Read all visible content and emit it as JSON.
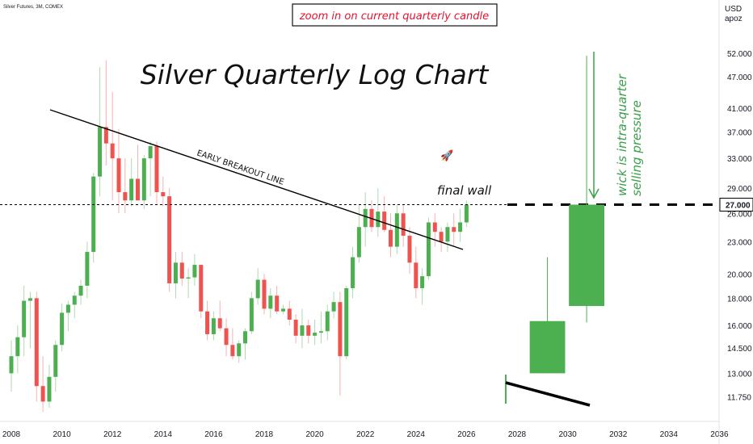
{
  "header": {
    "symbol_label": "Silver Futures, 3M, COMEX",
    "currency": "USD",
    "unit": "apoz"
  },
  "annotations": {
    "zoom_note": "zoom in on current quarterly candle",
    "breakout_line_label": "EARLY BREAKOUT LINE",
    "final_wall": "final wall",
    "wick_line1": "wick is intra-quarter",
    "wick_line2": "selling pressure",
    "rocket": "🚀"
  },
  "colors": {
    "up": "#4caf50",
    "down": "#ef5350",
    "text_red": "#e8112d",
    "text_green": "#3aa04a",
    "line": "#000000"
  },
  "chart_data": {
    "type": "candlestick",
    "title": "Silver Quarterly Log Chart",
    "y_scale": "log",
    "ylim": [
      11.2,
      56
    ],
    "xlim": [
      2007.8,
      2036.5
    ],
    "x_ticks": [
      "2008",
      "2010",
      "2012",
      "2014",
      "2016",
      "2018",
      "2020",
      "2022",
      "2024",
      "2026",
      "2028",
      "2030",
      "2032",
      "2034",
      "2036"
    ],
    "y_ticks": [
      "52.000",
      "47.000",
      "41.000",
      "37.000",
      "33.000",
      "29.000",
      "26.000",
      "23.000",
      "20.000",
      "18.000",
      "16.000",
      "14.500",
      "13.000",
      "11.750"
    ],
    "price_label": "27.000",
    "level_line": 27.0,
    "candles": [
      {
        "x": 2008.0,
        "o": 13.0,
        "h": 15.0,
        "l": 12.0,
        "c": 14.0
      },
      {
        "x": 2008.25,
        "o": 14.0,
        "h": 16.0,
        "l": 13.0,
        "c": 15.2
      },
      {
        "x": 2008.5,
        "o": 15.2,
        "h": 19.0,
        "l": 14.0,
        "c": 17.8
      },
      {
        "x": 2008.75,
        "o": 17.8,
        "h": 18.5,
        "l": 14.5,
        "c": 18.0
      },
      {
        "x": 2009.0,
        "o": 18.0,
        "h": 18.5,
        "l": 11.5,
        "c": 12.3
      },
      {
        "x": 2009.25,
        "o": 12.3,
        "h": 14.0,
        "l": 11.0,
        "c": 11.5
      },
      {
        "x": 2009.5,
        "o": 11.5,
        "h": 13.5,
        "l": 11.2,
        "c": 12.8
      },
      {
        "x": 2009.75,
        "o": 12.8,
        "h": 15.0,
        "l": 12.0,
        "c": 14.7
      },
      {
        "x": 2010.0,
        "o": 14.7,
        "h": 17.6,
        "l": 14.3,
        "c": 16.9
      },
      {
        "x": 2010.25,
        "o": 16.9,
        "h": 17.8,
        "l": 15.6,
        "c": 17.5
      },
      {
        "x": 2010.5,
        "o": 17.5,
        "h": 18.5,
        "l": 16.5,
        "c": 18.2
      },
      {
        "x": 2010.75,
        "o": 18.2,
        "h": 19.5,
        "l": 17.5,
        "c": 19.0
      },
      {
        "x": 2011.0,
        "o": 19.0,
        "h": 23.0,
        "l": 18.0,
        "c": 22.0
      },
      {
        "x": 2011.25,
        "o": 22.0,
        "h": 31.0,
        "l": 21.0,
        "c": 30.5
      },
      {
        "x": 2011.5,
        "o": 30.5,
        "h": 49.0,
        "l": 28.0,
        "c": 37.8
      },
      {
        "x": 2011.75,
        "o": 37.8,
        "h": 50.5,
        "l": 32.0,
        "c": 35.2
      },
      {
        "x": 2012.0,
        "o": 35.2,
        "h": 44.0,
        "l": 27.5,
        "c": 33.0
      },
      {
        "x": 2012.25,
        "o": 33.0,
        "h": 37.5,
        "l": 26.0,
        "c": 28.5
      },
      {
        "x": 2012.5,
        "o": 28.5,
        "h": 33.0,
        "l": 26.0,
        "c": 27.5
      },
      {
        "x": 2012.75,
        "o": 27.5,
        "h": 33.0,
        "l": 26.8,
        "c": 30.2
      },
      {
        "x": 2013.0,
        "o": 30.2,
        "h": 35.0,
        "l": 27.5,
        "c": 27.5
      },
      {
        "x": 2013.25,
        "o": 27.5,
        "h": 33.5,
        "l": 26.5,
        "c": 33.0
      },
      {
        "x": 2013.5,
        "o": 33.0,
        "h": 35.5,
        "l": 28.0,
        "c": 34.8
      },
      {
        "x": 2013.75,
        "o": 34.8,
        "h": 35.5,
        "l": 27.0,
        "c": 28.5
      },
      {
        "x": 2014.0,
        "o": 28.5,
        "h": 30.5,
        "l": 26.8,
        "c": 28.0
      },
      {
        "x": 2014.25,
        "o": 28.0,
        "h": 29.0,
        "l": 18.5,
        "c": 19.2
      },
      {
        "x": 2014.5,
        "o": 19.2,
        "h": 22.0,
        "l": 18.0,
        "c": 21.0
      },
      {
        "x": 2014.75,
        "o": 21.0,
        "h": 22.0,
        "l": 19.0,
        "c": 19.6
      },
      {
        "x": 2015.0,
        "o": 19.6,
        "h": 20.5,
        "l": 18.0,
        "c": 19.7
      },
      {
        "x": 2015.25,
        "o": 19.7,
        "h": 21.8,
        "l": 19.0,
        "c": 20.8
      },
      {
        "x": 2015.5,
        "o": 20.8,
        "h": 20.8,
        "l": 16.5,
        "c": 17.0
      },
      {
        "x": 2015.75,
        "o": 17.0,
        "h": 17.8,
        "l": 15.0,
        "c": 15.4
      },
      {
        "x": 2016.0,
        "o": 15.4,
        "h": 17.0,
        "l": 15.0,
        "c": 16.5
      },
      {
        "x": 2016.25,
        "o": 16.5,
        "h": 17.8,
        "l": 15.6,
        "c": 15.8
      },
      {
        "x": 2016.5,
        "o": 15.8,
        "h": 16.5,
        "l": 14.0,
        "c": 14.7
      },
      {
        "x": 2016.75,
        "o": 14.7,
        "h": 15.8,
        "l": 13.8,
        "c": 14.0
      },
      {
        "x": 2017.0,
        "o": 14.0,
        "h": 15.0,
        "l": 13.6,
        "c": 14.8
      },
      {
        "x": 2017.25,
        "o": 14.8,
        "h": 15.8,
        "l": 13.8,
        "c": 15.6
      },
      {
        "x": 2017.5,
        "o": 15.6,
        "h": 18.5,
        "l": 15.4,
        "c": 18.0
      },
      {
        "x": 2017.75,
        "o": 18.0,
        "h": 20.5,
        "l": 17.5,
        "c": 19.5
      },
      {
        "x": 2018.0,
        "o": 19.5,
        "h": 20.0,
        "l": 16.8,
        "c": 17.2
      },
      {
        "x": 2018.25,
        "o": 17.2,
        "h": 18.8,
        "l": 16.5,
        "c": 18.2
      },
      {
        "x": 2018.5,
        "o": 18.2,
        "h": 19.0,
        "l": 16.8,
        "c": 17.0
      },
      {
        "x": 2018.75,
        "o": 17.0,
        "h": 17.5,
        "l": 16.8,
        "c": 17.2
      },
      {
        "x": 2019.0,
        "o": 17.2,
        "h": 17.8,
        "l": 16.0,
        "c": 16.4
      },
      {
        "x": 2019.25,
        "o": 16.4,
        "h": 16.8,
        "l": 14.8,
        "c": 15.3
      },
      {
        "x": 2019.5,
        "o": 15.3,
        "h": 17.2,
        "l": 14.5,
        "c": 16.0
      },
      {
        "x": 2019.75,
        "o": 16.0,
        "h": 16.4,
        "l": 14.8,
        "c": 15.3
      },
      {
        "x": 2020.0,
        "o": 15.3,
        "h": 16.4,
        "l": 14.7,
        "c": 15.5
      },
      {
        "x": 2020.25,
        "o": 15.5,
        "h": 17.0,
        "l": 14.8,
        "c": 15.6
      },
      {
        "x": 2020.5,
        "o": 15.6,
        "h": 17.5,
        "l": 15.0,
        "c": 17.0
      },
      {
        "x": 2020.75,
        "o": 17.0,
        "h": 18.5,
        "l": 16.5,
        "c": 17.7
      },
      {
        "x": 2021.0,
        "o": 17.7,
        "h": 18.5,
        "l": 11.8,
        "c": 14.0
      },
      {
        "x": 2021.25,
        "o": 14.0,
        "h": 19.0,
        "l": 13.8,
        "c": 18.8
      },
      {
        "x": 2021.5,
        "o": 18.8,
        "h": 22.5,
        "l": 18.0,
        "c": 21.5
      },
      {
        "x": 2021.75,
        "o": 21.5,
        "h": 27.0,
        "l": 21.0,
        "c": 24.5
      },
      {
        "x": 2022.0,
        "o": 24.5,
        "h": 28.5,
        "l": 22.5,
        "c": 26.5
      },
      {
        "x": 2022.25,
        "o": 26.5,
        "h": 27.5,
        "l": 24.0,
        "c": 24.5
      },
      {
        "x": 2022.5,
        "o": 24.5,
        "h": 29.0,
        "l": 23.5,
        "c": 26.2
      },
      {
        "x": 2022.75,
        "o": 26.2,
        "h": 28.0,
        "l": 24.0,
        "c": 24.2
      },
      {
        "x": 2023.0,
        "o": 24.2,
        "h": 26.0,
        "l": 21.5,
        "c": 22.5
      },
      {
        "x": 2023.25,
        "o": 22.5,
        "h": 27.0,
        "l": 21.8,
        "c": 26.0
      },
      {
        "x": 2023.5,
        "o": 26.0,
        "h": 27.0,
        "l": 22.5,
        "c": 23.6
      },
      {
        "x": 2023.75,
        "o": 23.6,
        "h": 24.5,
        "l": 20.0,
        "c": 21.0
      },
      {
        "x": 2024.0,
        "o": 21.0,
        "h": 22.5,
        "l": 18.0,
        "c": 18.8
      },
      {
        "x": 2024.25,
        "o": 18.8,
        "h": 20.5,
        "l": 17.5,
        "c": 19.8
      },
      {
        "x": 2024.5,
        "o": 19.8,
        "h": 25.5,
        "l": 19.5,
        "c": 25.0
      },
      {
        "x": 2024.75,
        "o": 25.0,
        "h": 26.0,
        "l": 22.5,
        "c": 24.0
      },
      {
        "x": 2025.0,
        "o": 24.0,
        "h": 24.5,
        "l": 22.0,
        "c": 23.0
      },
      {
        "x": 2025.25,
        "o": 23.0,
        "h": 25.0,
        "l": 22.0,
        "c": 24.5
      },
      {
        "x": 2025.5,
        "o": 24.5,
        "h": 26.0,
        "l": 22.5,
        "c": 24.0
      },
      {
        "x": 2025.75,
        "o": 24.0,
        "h": 26.5,
        "l": 23.0,
        "c": 25.0
      },
      {
        "x": 2026.0,
        "o": 25.0,
        "h": 27.5,
        "l": 24.5,
        "c": 27.0
      }
    ],
    "zoom_candle": {
      "o": 17.4,
      "h": 51.5,
      "l": 16.2,
      "c": 27.0,
      "x_from": 2030.05,
      "x_to": 2031.45
    },
    "small_candle": {
      "o": 13.0,
      "h": 21.5,
      "l": 13.0,
      "c": 16.3,
      "x_from": 2028.5,
      "x_to": 2029.9
    }
  }
}
